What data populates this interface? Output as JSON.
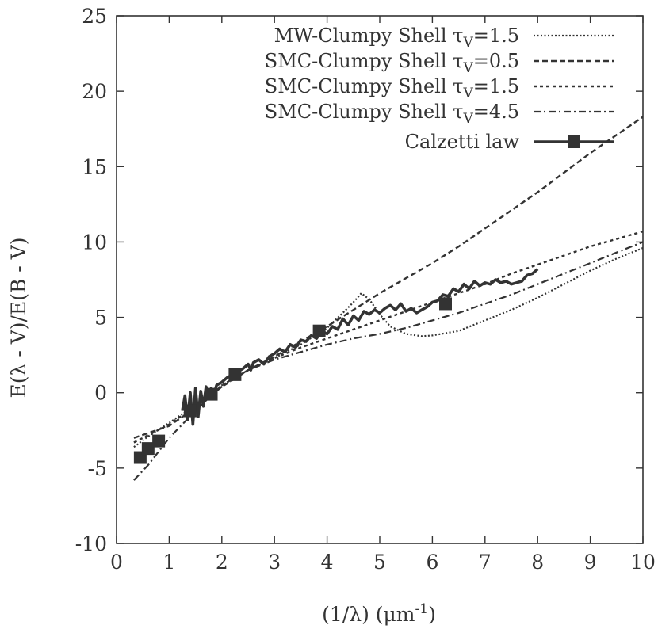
{
  "chart_data": {
    "type": "line",
    "title": "",
    "xlabel": "(1/λ) (μm",
    "xlabel_sup": "-1",
    "xlabel_close": ")",
    "ylabel": "E(λ - V)/E(B - V)",
    "xlim": [
      0,
      10
    ],
    "ylim": [
      -10,
      25
    ],
    "xticks": [
      0,
      1,
      2,
      3,
      4,
      5,
      6,
      7,
      8,
      9,
      10
    ],
    "xtick_labels": [
      "0",
      "1",
      "2",
      "3",
      "4",
      "5",
      "6",
      "7",
      "8",
      "9",
      "10"
    ],
    "yticks": [
      -10,
      -5,
      0,
      5,
      10,
      15,
      20,
      25
    ],
    "ytick_labels": [
      "-10",
      "-5",
      "0",
      "5",
      "10",
      "15",
      "20",
      "25"
    ],
    "legend_position": "top-right",
    "series": [
      {
        "name": "MW-Clumpy Shell",
        "legend_tau": "V",
        "legend_value": "=1.5",
        "dash": "dotted",
        "x": [
          0.33,
          0.6,
          1.0,
          1.5,
          2.0,
          2.5,
          3.0,
          3.5,
          4.0,
          4.3,
          4.5,
          4.65,
          4.8,
          5.0,
          5.2,
          5.5,
          5.8,
          6.0,
          6.5,
          7.0,
          7.5,
          8.0,
          8.5,
          9.0,
          9.5,
          10.0
        ],
        "y": [
          -3.6,
          -2.9,
          -2.0,
          -0.8,
          0.5,
          1.5,
          2.3,
          3.2,
          4.3,
          5.3,
          6.0,
          6.6,
          6.2,
          5.2,
          4.4,
          3.9,
          3.75,
          3.8,
          4.1,
          4.8,
          5.5,
          6.3,
          7.2,
          8.1,
          8.9,
          9.6
        ]
      },
      {
        "name": "SMC-Clumpy Shell",
        "legend_tau": "V",
        "legend_value": "=0.5",
        "dash": "dashed",
        "x": [
          0.33,
          1.0,
          1.5,
          2.0,
          2.5,
          3.0,
          3.5,
          4.0,
          4.5,
          5.0,
          5.5,
          6.0,
          6.5,
          7.0,
          7.5,
          8.0,
          8.5,
          9.0,
          9.5,
          10.0
        ],
        "y": [
          -3.0,
          -2.2,
          -1.0,
          0.4,
          1.5,
          2.4,
          3.4,
          4.4,
          5.5,
          6.6,
          7.6,
          8.6,
          9.7,
          10.9,
          12.1,
          13.3,
          14.6,
          15.9,
          17.1,
          18.3
        ]
      },
      {
        "name": "SMC-Clumpy Shell",
        "legend_tau": "V",
        "legend_value": "=1.5",
        "dash": "short-dashed",
        "x": [
          0.33,
          1.0,
          1.5,
          2.0,
          2.5,
          3.0,
          3.5,
          4.0,
          4.5,
          5.0,
          5.5,
          6.0,
          6.5,
          7.0,
          7.5,
          8.0,
          8.5,
          9.0,
          9.5,
          10.0
        ],
        "y": [
          -3.3,
          -2.1,
          -0.9,
          0.4,
          1.5,
          2.3,
          3.0,
          3.6,
          4.2,
          4.8,
          5.4,
          6.0,
          6.6,
          7.2,
          7.9,
          8.5,
          9.1,
          9.7,
          10.2,
          10.7
        ]
      },
      {
        "name": "SMC-Clumpy Shell",
        "legend_tau": "V",
        "legend_value": "=4.5",
        "dash": "dash-dot",
        "x": [
          0.33,
          0.6,
          1.0,
          1.5,
          2.0,
          2.5,
          3.0,
          3.5,
          4.0,
          4.5,
          5.0,
          5.5,
          6.0,
          6.5,
          7.0,
          7.5,
          8.0,
          8.5,
          9.0,
          9.5,
          10.0
        ],
        "y": [
          -5.8,
          -4.8,
          -3.0,
          -1.2,
          0.5,
          1.5,
          2.2,
          2.7,
          3.2,
          3.6,
          3.9,
          4.3,
          4.8,
          5.3,
          5.9,
          6.5,
          7.2,
          7.9,
          8.6,
          9.3,
          10.0
        ]
      },
      {
        "name": "Calzetti law",
        "legend_tau": "",
        "legend_value": "",
        "dash": "solid",
        "x": [
          1.25,
          1.3,
          1.35,
          1.4,
          1.45,
          1.5,
          1.55,
          1.6,
          1.65,
          1.7,
          1.75,
          1.8,
          1.85,
          1.9,
          2.0,
          2.1,
          2.2,
          2.3,
          2.4,
          2.5,
          2.55,
          2.6,
          2.7,
          2.8,
          2.9,
          3.0,
          3.1,
          3.2,
          3.3,
          3.4,
          3.5,
          3.6,
          3.7,
          3.8,
          3.9,
          4.0,
          4.1,
          4.2,
          4.3,
          4.4,
          4.5,
          4.6,
          4.7,
          4.8,
          4.9,
          5.0,
          5.1,
          5.2,
          5.3,
          5.4,
          5.5,
          5.6,
          5.7,
          5.8,
          5.9,
          6.0,
          6.1,
          6.2,
          6.3,
          6.4,
          6.5,
          6.6,
          6.7,
          6.8,
          6.9,
          7.0,
          7.1,
          7.2,
          7.3,
          7.4,
          7.5,
          7.6,
          7.7,
          7.8,
          7.9,
          8.0
        ],
        "y": [
          -1.2,
          -0.2,
          -1.8,
          0.0,
          -2.1,
          0.3,
          -1.6,
          0.1,
          -0.9,
          0.4,
          -0.3,
          0.3,
          -0.1,
          0.5,
          0.7,
          1.0,
          1.2,
          1.4,
          1.6,
          1.9,
          1.5,
          2.0,
          2.2,
          1.9,
          2.4,
          2.6,
          2.9,
          2.7,
          3.2,
          3.0,
          3.5,
          3.4,
          3.8,
          3.6,
          4.1,
          3.9,
          4.4,
          4.2,
          4.9,
          4.5,
          5.1,
          4.8,
          5.4,
          5.2,
          5.5,
          5.3,
          5.6,
          5.8,
          5.5,
          5.9,
          5.4,
          5.6,
          5.3,
          5.5,
          5.7,
          6.0,
          6.1,
          6.5,
          6.4,
          6.9,
          6.7,
          7.2,
          6.9,
          7.4,
          7.1,
          7.3,
          7.2,
          7.5,
          7.3,
          7.4,
          7.2,
          7.3,
          7.4,
          7.8,
          7.9,
          8.2
        ]
      }
    ],
    "markers": {
      "series": "Calzetti law",
      "shape": "square",
      "x": [
        0.45,
        0.6,
        0.8,
        1.4,
        1.8,
        2.25,
        3.85,
        6.25
      ],
      "y": [
        -4.3,
        -3.7,
        -3.2,
        -1.2,
        -0.1,
        1.2,
        4.1,
        5.9
      ]
    }
  }
}
